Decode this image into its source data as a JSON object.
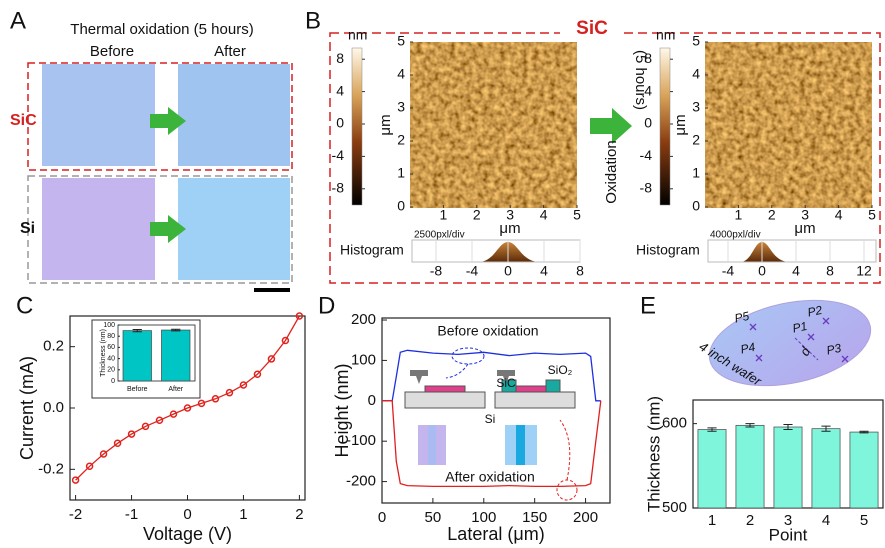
{
  "panels": {
    "A": {
      "label": "A",
      "title": "Thermal oxidation (5 hours)",
      "columns": [
        "Before",
        "After"
      ],
      "rows": [
        "SiC",
        "Si"
      ]
    },
    "B": {
      "label": "B",
      "title": "SiC",
      "arrow_text": "Oxidation",
      "arrow_subtext": "(5 hours)",
      "afm": [
        {
          "unit": "nm",
          "colorbar_ticks": [
            8,
            4,
            0,
            -4,
            -8
          ],
          "y_label": "μm",
          "x_label": "μm",
          "yticks": [
            0,
            1,
            2,
            3,
            4,
            5
          ],
          "xticks": [
            1,
            2,
            3,
            4,
            5
          ],
          "histogram_label": "Histogram",
          "histogram_scale": "2500pxl/div",
          "histogram_ticks": [
            -8,
            -4,
            0,
            4,
            8
          ]
        },
        {
          "unit": "nm",
          "colorbar_ticks": [
            8,
            4,
            0,
            -4,
            -8
          ],
          "y_label": "μm",
          "x_label": "μm",
          "yticks": [
            0,
            1,
            2,
            3,
            4,
            5
          ],
          "xticks": [
            1,
            2,
            3,
            4,
            5
          ],
          "histogram_label": "Histogram",
          "histogram_scale": "4000pxl/div",
          "histogram_ticks": [
            -4,
            0,
            4,
            8,
            12
          ]
        }
      ]
    },
    "C": {
      "label": "C"
    },
    "D": {
      "label": "D",
      "schematic": [
        "SiC",
        "SiO₂",
        "Si"
      ]
    },
    "E": {
      "label": "E",
      "wafer_label": "4 inch wafer",
      "points": [
        "P1",
        "P2",
        "P3",
        "P4",
        "P5"
      ],
      "distance": "d"
    }
  },
  "chart_data": [
    {
      "type": "line",
      "marker": "circle",
      "x_label": "Voltage (V)",
      "y_label": "Current (mA)",
      "x": [
        -2,
        -1.75,
        -1.5,
        -1.25,
        -1,
        -0.75,
        -0.5,
        -0.25,
        0,
        0.25,
        0.5,
        0.75,
        1,
        1.25,
        1.5,
        1.75,
        2
      ],
      "series": [
        {
          "color": "#e0231c",
          "values": [
            -0.235,
            -0.19,
            -0.15,
            -0.115,
            -0.085,
            -0.06,
            -0.04,
            -0.02,
            0,
            0.015,
            0.03,
            0.05,
            0.075,
            0.11,
            0.16,
            0.22,
            0.3
          ]
        }
      ],
      "xlim": [
        -2.1,
        2.1
      ],
      "ylim": [
        -0.3,
        0.3
      ],
      "xticks": [
        -2,
        -1,
        0,
        1,
        2
      ],
      "yticks": [
        -0.2,
        {
          "value": 0,
          "label": "0.0"
        },
        0.2
      ]
    },
    {
      "type": "bar",
      "y_label": "Thickness (nm)",
      "categories": [
        "Before",
        "After"
      ],
      "values": [
        90,
        91
      ],
      "errors": [
        2,
        1.5
      ],
      "color": "#00c5c5",
      "ylim": [
        0,
        100
      ],
      "yticks": [
        0,
        20,
        40,
        60,
        80,
        100
      ]
    },
    {
      "type": "line",
      "x_label": "Lateral (μm)",
      "y_label": "Height (nm)",
      "x": [
        0,
        10,
        14,
        18,
        25,
        50,
        75,
        100,
        125,
        150,
        175,
        200,
        205,
        210,
        215
      ],
      "series": [
        {
          "name": "Before oxidation",
          "color": "#1f2fe0",
          "values": [
            0,
            0,
            60,
            120,
            125,
            118,
            115,
            120,
            112,
            118,
            115,
            118,
            110,
            0,
            0
          ]
        },
        {
          "name": "After oxidation",
          "color": "#e02020",
          "values": [
            0,
            0,
            -150,
            -205,
            -210,
            -212,
            -212,
            -212,
            -210,
            -212,
            -212,
            -210,
            -205,
            -100,
            0
          ]
        }
      ],
      "xlim": [
        0,
        224
      ],
      "ylim": [
        -253,
        205
      ],
      "xticks": [
        0,
        50,
        100,
        150,
        200
      ],
      "yticks": [
        -200,
        -100,
        0,
        100,
        200
      ]
    },
    {
      "type": "bar",
      "x_label": "Point",
      "y_label": "Thickness (nm)",
      "categories": [
        "1",
        "2",
        "3",
        "4",
        "5"
      ],
      "values": [
        593,
        598,
        596,
        594,
        590
      ],
      "errors": [
        2,
        2,
        3,
        3,
        1
      ],
      "color": "#7ff5dc",
      "ylim": [
        500,
        628
      ],
      "yticks": [
        500,
        600
      ]
    }
  ]
}
